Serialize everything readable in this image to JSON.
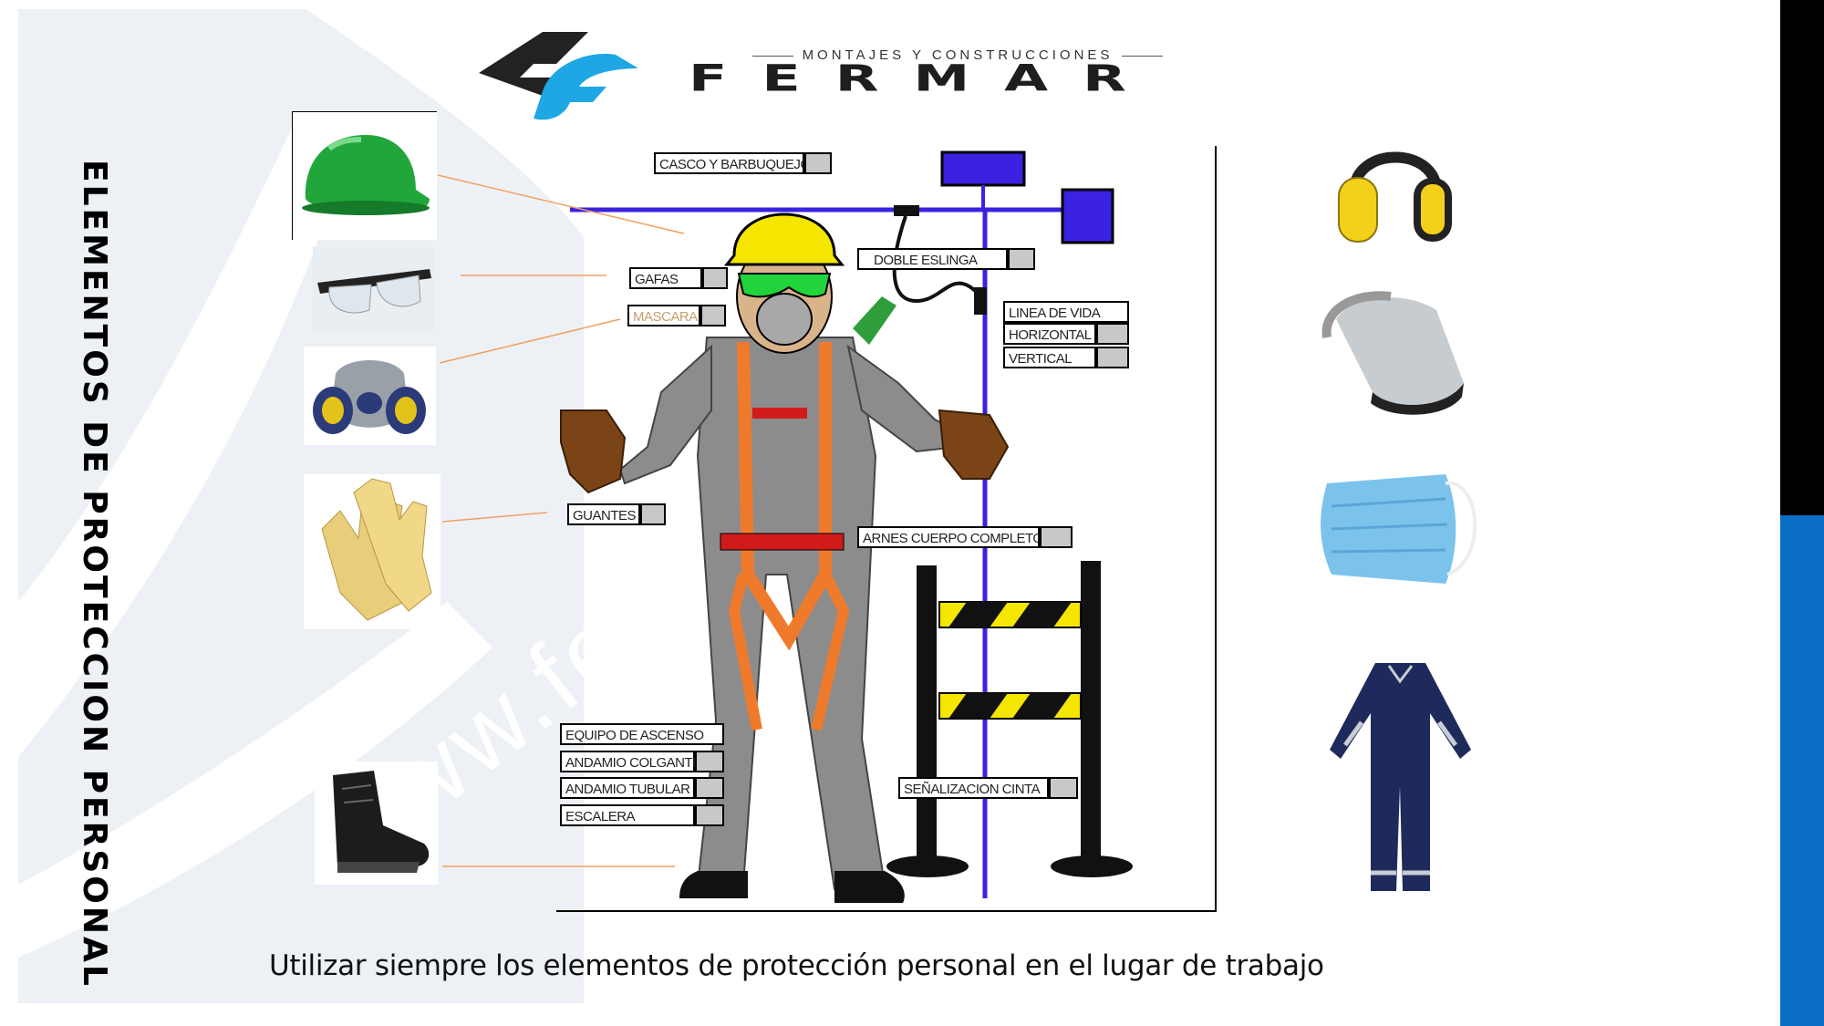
{
  "logo": {
    "subtitle": "MONTAJES Y CONSTRUCCIONES",
    "name": "FERMAR"
  },
  "watermark": "www.fer",
  "title": "ELEMENTOS DE PROTECCION PERSONAL",
  "labels": {
    "casco": "CASCO Y BARBUQUEJO",
    "gafas": "GAFAS",
    "mascara": "MASCARA",
    "guantes": "GUANTES",
    "doble_eslinga": "DOBLE ESLINGA",
    "linea_de_vida": "LINEA DE VIDA",
    "horizontal": "HORIZONTAL",
    "vertical": "VERTICAL",
    "arnes": "ARNES CUERPO COMPLETO",
    "equipo_ascenso": "EQUIPO DE ASCENSO",
    "andamio_colgante": "ANDAMIO COLGANTE",
    "andamio_tubular": "ANDAMIO TUBULAR",
    "escalera": "ESCALERA",
    "senalizacion": "SEÑALIZACION CINTA"
  },
  "caption": "Utilizar siempre los elementos de protección personal en el lugar de trabajo",
  "colors": {
    "accent_blue": "#0a6fc4",
    "logo_blue": "#1ea7e4",
    "helmet_green": "#21a63b",
    "helmet_yellow": "#f5e600",
    "harness_orange": "#f07a2c",
    "lifeline_blue": "#3a22e0"
  },
  "icons": {
    "helmet": "green-hard-hat-icon",
    "goggles": "safety-glasses-icon",
    "respirator": "half-face-respirator-icon",
    "gloves": "leather-gloves-icon",
    "boot": "safety-boot-icon",
    "earmuffs": "ear-muff-icon",
    "faceshield": "face-shield-icon",
    "mask": "surgical-mask-icon",
    "coverall": "coverall-icon"
  }
}
